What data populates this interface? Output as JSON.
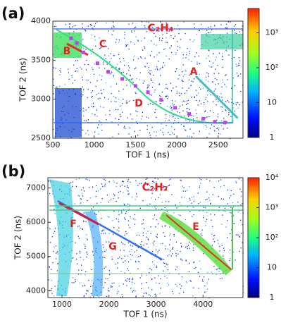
{
  "chart_data": [
    {
      "type": "heatmap",
      "panel_label": "(a)",
      "molecule": "C₂H₄",
      "xlabel": "TOF 1 (ns)",
      "ylabel": "TOF 2 (ns)",
      "xlim": [
        500,
        2800
      ],
      "xticks": [
        500,
        1000,
        1500,
        2000,
        2500
      ],
      "ylim": [
        2500,
        4000
      ],
      "yticks": [
        2500,
        3000,
        3500,
        4000
      ],
      "zlim": [
        1,
        5000
      ],
      "log_color": true,
      "zticks": [
        1,
        10,
        {
          "value": 100,
          "label": "10²"
        },
        {
          "value": 1000,
          "label": "10³"
        }
      ],
      "annotations": [
        "A",
        "B",
        "C",
        "D"
      ],
      "color": "#c040f0",
      "x": [
        720,
        790,
        870,
        1040,
        1170,
        1340,
        1500,
        1650,
        1810,
        1980,
        2150,
        2320,
        2460,
        2580
      ],
      "values": [
        3780,
        3720,
        3600,
        3460,
        3350,
        3260,
        3170,
        3090,
        2990,
        2890,
        2810,
        2750,
        2710,
        2700
      ]
    },
    {
      "type": "heatmap",
      "panel_label": "(b)",
      "molecule": "C₂H₂",
      "xlabel": "TOF 1 (ns)",
      "ylabel": "TOF 2 (ns)",
      "xlim": [
        700,
        4850
      ],
      "xticks": [
        1000,
        2000,
        3000,
        4000
      ],
      "ylim": [
        3800,
        7300
      ],
      "yticks": [
        4000,
        5000,
        6000,
        7000
      ],
      "zlim": [
        1,
        10000
      ],
      "log_color": true,
      "zticks": [
        1,
        10,
        {
          "value": 100,
          "label": "10²"
        },
        {
          "value": 1000,
          "label": "10³"
        },
        {
          "value": 10000,
          "label": "10⁴"
        }
      ],
      "annotations": [
        "E",
        "F",
        "G"
      ]
    }
  ]
}
